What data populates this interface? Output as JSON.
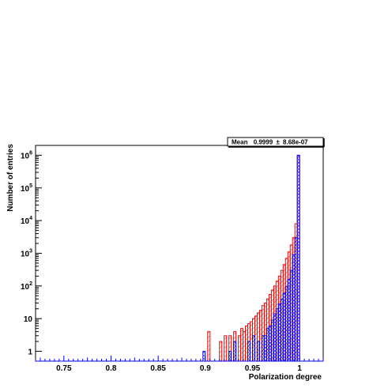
{
  "chart_data": {
    "type": "histogram",
    "xlabel": "Polarization degree",
    "ylabel": "Number of entries",
    "xlim": [
      0.72,
      1.025
    ],
    "ylim": [
      0.5,
      2000000
    ],
    "yscale": "log",
    "x_ticks": [
      0.75,
      0.8,
      0.85,
      0.9,
      0.95,
      1
    ],
    "x_tick_labels": [
      "0.75",
      "0.8",
      "0.85",
      "0.9",
      "0.95",
      "1"
    ],
    "y_ticks": [
      1,
      10,
      100,
      1000,
      10000,
      100000,
      1000000
    ],
    "y_tick_labels": [
      {
        "base": "1",
        "exp": ""
      },
      {
        "base": "10",
        "exp": ""
      },
      {
        "base": "10",
        "exp": "2"
      },
      {
        "base": "10",
        "exp": "3"
      },
      {
        "base": "10",
        "exp": "4"
      },
      {
        "base": "10",
        "exp": "5"
      },
      {
        "base": "10",
        "exp": "6"
      }
    ],
    "grid": false,
    "stats_box": {
      "label": "Mean",
      "value": "0.9999",
      "pm": "±",
      "error": "8.68e-07"
    },
    "series": [
      {
        "color": "#ff0000",
        "fill": "hatched-diagonal",
        "bins": [
          [
            0.9025,
            0.905,
            4
          ],
          [
            0.915,
            0.9175,
            2
          ],
          [
            0.92,
            0.9225,
            3
          ],
          [
            0.925,
            0.9275,
            3
          ],
          [
            0.93,
            0.9325,
            4
          ],
          [
            0.935,
            0.9375,
            3
          ],
          [
            0.9375,
            0.94,
            5
          ],
          [
            0.94,
            0.9425,
            4
          ],
          [
            0.9425,
            0.945,
            6
          ],
          [
            0.945,
            0.9475,
            7
          ],
          [
            0.9475,
            0.95,
            8
          ],
          [
            0.95,
            0.9525,
            10
          ],
          [
            0.9525,
            0.955,
            12
          ],
          [
            0.955,
            0.9575,
            15
          ],
          [
            0.9575,
            0.96,
            18
          ],
          [
            0.96,
            0.9625,
            25
          ],
          [
            0.9625,
            0.965,
            30
          ],
          [
            0.965,
            0.9675,
            40
          ],
          [
            0.9675,
            0.97,
            55
          ],
          [
            0.97,
            0.9725,
            75
          ],
          [
            0.9725,
            0.975,
            100
          ],
          [
            0.975,
            0.9775,
            140
          ],
          [
            0.9775,
            0.98,
            200
          ],
          [
            0.98,
            0.9825,
            300
          ],
          [
            0.9825,
            0.985,
            450
          ],
          [
            0.985,
            0.9875,
            700
          ],
          [
            0.9875,
            0.99,
            1100
          ],
          [
            0.99,
            0.9925,
            1800
          ],
          [
            0.9925,
            0.995,
            3000
          ],
          [
            0.995,
            0.9975,
            8000
          ],
          [
            0.9975,
            1.0,
            1000000
          ]
        ]
      },
      {
        "color": "#0000ff",
        "fill": "hatched-cross",
        "bins": [
          [
            0.8975,
            0.9,
            1
          ],
          [
            0.925,
            0.9275,
            1
          ],
          [
            0.93,
            0.9325,
            2
          ],
          [
            0.945,
            0.9475,
            2
          ],
          [
            0.95,
            0.9525,
            3
          ],
          [
            0.955,
            0.9575,
            2
          ],
          [
            0.96,
            0.9625,
            3
          ],
          [
            0.9625,
            0.965,
            3
          ],
          [
            0.965,
            0.9675,
            5
          ],
          [
            0.9675,
            0.97,
            6
          ],
          [
            0.97,
            0.9725,
            9
          ],
          [
            0.9725,
            0.975,
            14
          ],
          [
            0.975,
            0.9775,
            20
          ],
          [
            0.9775,
            0.98,
            28
          ],
          [
            0.98,
            0.9825,
            40
          ],
          [
            0.9825,
            0.985,
            60
          ],
          [
            0.985,
            0.9875,
            95
          ],
          [
            0.9875,
            0.99,
            160
          ],
          [
            0.99,
            0.9925,
            300
          ],
          [
            0.9925,
            0.995,
            900
          ],
          [
            0.995,
            0.9975,
            3000
          ],
          [
            0.9975,
            1.0,
            1000000
          ]
        ]
      }
    ]
  }
}
